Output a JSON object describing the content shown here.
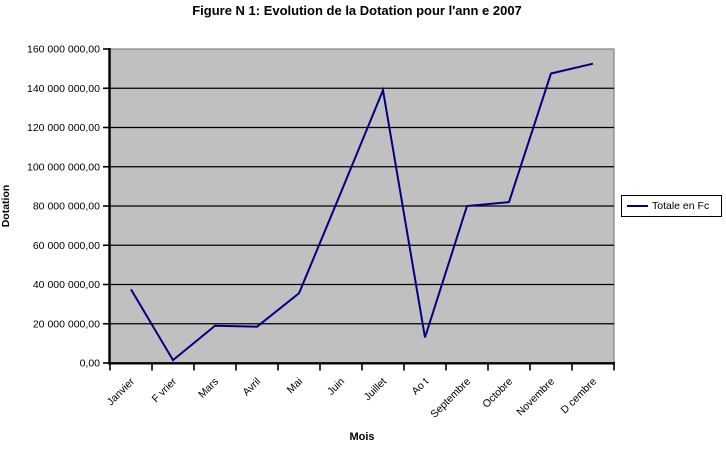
{
  "chart_data": {
    "type": "line",
    "title": "Figure N 1: Evolution de la Dotation pour l'ann e 2007",
    "xlabel": "Mois",
    "ylabel": "Dotation",
    "categories": [
      "Janvier",
      "F vrier",
      "Mars",
      "Avril",
      "Mai",
      "Juin",
      "Juillet",
      "Ao t",
      "Septembre",
      "Octobre",
      "Novembre",
      "D cembre"
    ],
    "series": [
      {
        "name": "Totale en Fc",
        "color": "#000080",
        "values": [
          37500000,
          1500000,
          19000000,
          18500000,
          35500000,
          87000000,
          139000000,
          13000000,
          80000000,
          82000000,
          147500000,
          152500000
        ]
      }
    ],
    "ylim": [
      0,
      160000000
    ],
    "ytick_step": 20000000,
    "ytick_labels": [
      "0,00",
      "20 000 000,00",
      "40 000 000,00",
      "60 000 000,00",
      "80 000 000,00",
      "100 000 000,00",
      "120 000 000,00",
      "140 000 000,00",
      "160 000 000,00"
    ],
    "grid": true,
    "legend": {
      "position": "right",
      "entries": [
        {
          "label": "Totale en Fc",
          "color": "#000080"
        }
      ]
    },
    "colors": {
      "plot_bg": "#c0c0c0",
      "plot_border": "#848284",
      "gridline": "#000000",
      "axis": "#000000",
      "tick": "#000000",
      "series": "#000080",
      "legend_border": "#000000",
      "legend_bg": "#ffffff",
      "text": "#000000"
    }
  }
}
